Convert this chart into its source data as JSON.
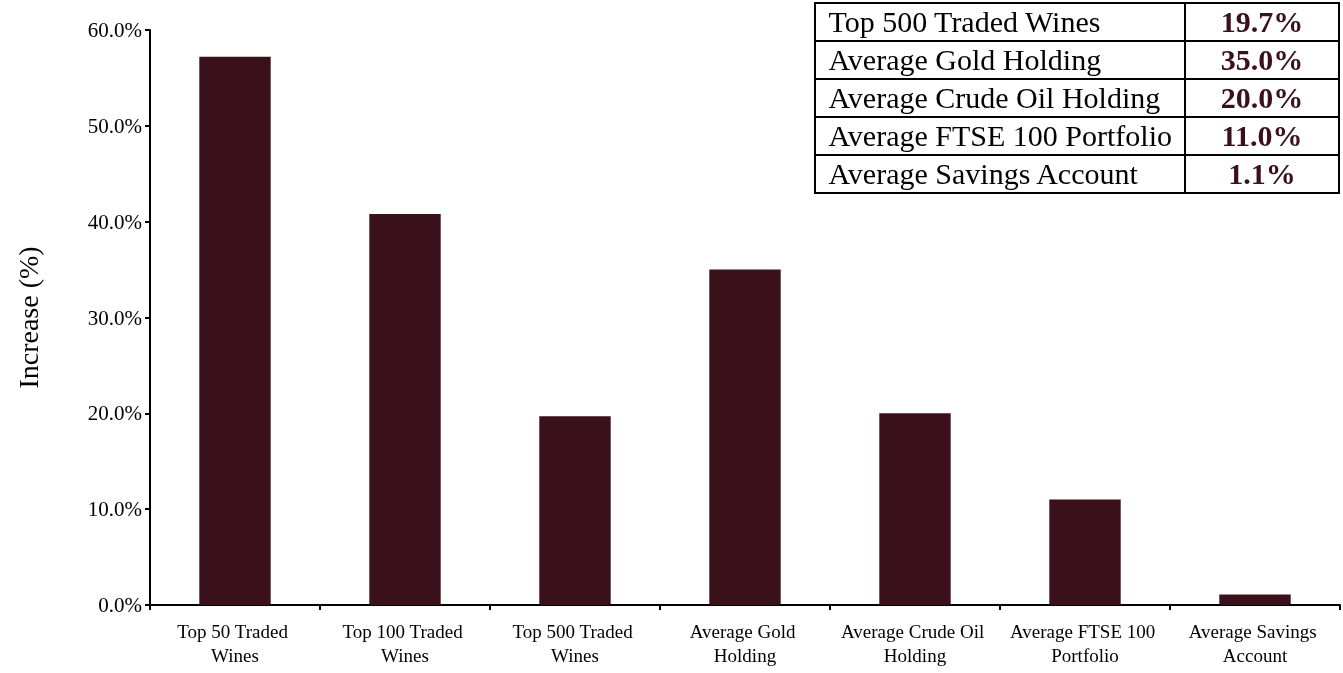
{
  "chart_data": {
    "type": "bar",
    "ylabel": "Increase (%)",
    "categories": [
      "Top 50 Traded Wines",
      "Top 100 Traded Wines",
      "Top 500 Traded Wines",
      "Average Gold Holding",
      "Average Crude Oil Holding",
      "Average FTSE 100 Portfolio",
      "Average Savings Account"
    ],
    "values": [
      57.2,
      40.8,
      19.7,
      35.0,
      20.0,
      11.0,
      1.1
    ],
    "annotations": [
      "Top 500 Traded Wines",
      "19.7%",
      "Average Gold Holding",
      "35.0%",
      "Average Crude Oil Holding",
      "20.0%",
      "Average FTSE 100 Portfolio",
      "11.0%",
      "Average Savings Account",
      "1.1%"
    ],
    "color": "#3a111b",
    "ylim": [
      0,
      60
    ],
    "yticks": [
      {
        "value": 0,
        "label": "0.0%"
      },
      {
        "value": 10,
        "label": "10.0%"
      },
      {
        "value": 20,
        "label": "20.0%"
      },
      {
        "value": 30,
        "label": "30.0%"
      },
      {
        "value": 40,
        "label": "40.0%"
      },
      {
        "value": 50,
        "label": "50.0%"
      },
      {
        "value": 60,
        "label": "60.0%"
      }
    ],
    "grid": false
  }
}
